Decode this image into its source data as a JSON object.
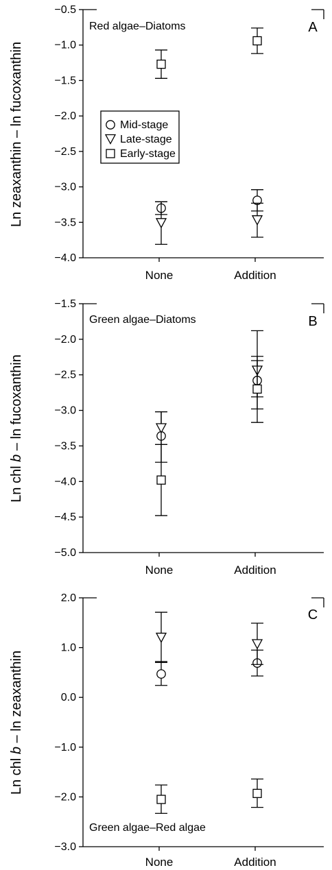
{
  "chart_data": [
    {
      "type": "scatter",
      "id": "A",
      "panel_letter": "A",
      "title": "Red algae–Diatoms",
      "ylabel": "Ln zeaxanthin – ln fucoxanthin",
      "categories": [
        "None",
        "Addition"
      ],
      "ylim": [
        -4.0,
        -0.5
      ],
      "yticks": [
        "-0.5",
        "-1.0",
        "-1.5",
        "-2.0",
        "-2.5",
        "-3.0",
        "-3.5",
        "-4.0"
      ],
      "legend": {
        "position": "left-center",
        "entries": [
          "Mid-stage",
          "Late-stage",
          "Early-stage"
        ]
      },
      "series": [
        {
          "name": "Mid-stage",
          "marker": "circle",
          "values": [
            -3.3,
            -3.19
          ],
          "err_low": [
            -3.39,
            -3.34
          ],
          "err_high": [
            -3.21,
            -3.04
          ]
        },
        {
          "name": "Late-stage",
          "marker": "triangle-down",
          "values": [
            -3.51,
            -3.47
          ],
          "err_low": [
            -3.81,
            -3.71
          ],
          "err_high": [
            -3.21,
            -3.23
          ]
        },
        {
          "name": "Early-stage",
          "marker": "square",
          "values": [
            -1.27,
            -0.94
          ],
          "err_low": [
            -1.47,
            -1.12
          ],
          "err_high": [
            -1.07,
            -0.76
          ]
        }
      ]
    },
    {
      "type": "scatter",
      "id": "B",
      "panel_letter": "B",
      "title": "Green algae–Diatoms",
      "ylabel": "Ln chl b – ln fucoxanthin",
      "categories": [
        "None",
        "Addition"
      ],
      "ylim": [
        -5.0,
        -1.5
      ],
      "yticks": [
        "-1.5",
        "-2.0",
        "-2.5",
        "-3.0",
        "-3.5",
        "-4.0",
        "-4.5",
        "-5.0"
      ],
      "series": [
        {
          "name": "Mid-stage",
          "marker": "circle",
          "values": [
            -3.36,
            -2.58
          ],
          "err_low": [
            -3.73,
            -2.98
          ],
          "err_high": [
            -3.02,
            -2.24
          ]
        },
        {
          "name": "Late-stage",
          "marker": "triangle-down",
          "values": [
            -3.25,
            -2.44
          ],
          "err_low": [
            -3.48,
            -2.81
          ],
          "err_high": [
            -3.02,
            -2.3
          ]
        },
        {
          "name": "Early-stage",
          "marker": "square",
          "values": [
            -3.98,
            -2.7
          ],
          "err_low": [
            -4.48,
            -3.17
          ],
          "err_high": [
            -3.48,
            -1.88
          ]
        }
      ]
    },
    {
      "type": "scatter",
      "id": "C",
      "panel_letter": "C",
      "title": "Green algae–Red algae",
      "ylabel": "Ln chl b – ln zeaxanthin",
      "categories": [
        "None",
        "Addition"
      ],
      "ylim": [
        -3.0,
        2.0
      ],
      "yticks": [
        "2.0",
        "1.0",
        "0.0",
        "-1.0",
        "-2.0",
        "-3.0"
      ],
      "series": [
        {
          "name": "Mid-stage",
          "marker": "circle",
          "values": [
            0.47,
            0.69
          ],
          "err_low": [
            0.24,
            0.43
          ],
          "err_high": [
            0.72,
            0.95
          ]
        },
        {
          "name": "Late-stage",
          "marker": "triangle-down",
          "values": [
            1.2,
            1.07
          ],
          "err_low": [
            0.7,
            0.66
          ],
          "err_high": [
            1.71,
            1.49
          ]
        },
        {
          "name": "Early-stage",
          "marker": "square",
          "values": [
            -2.05,
            -1.93
          ],
          "err_low": [
            -2.33,
            -2.21
          ],
          "err_high": [
            -1.76,
            -1.64
          ]
        }
      ]
    }
  ]
}
